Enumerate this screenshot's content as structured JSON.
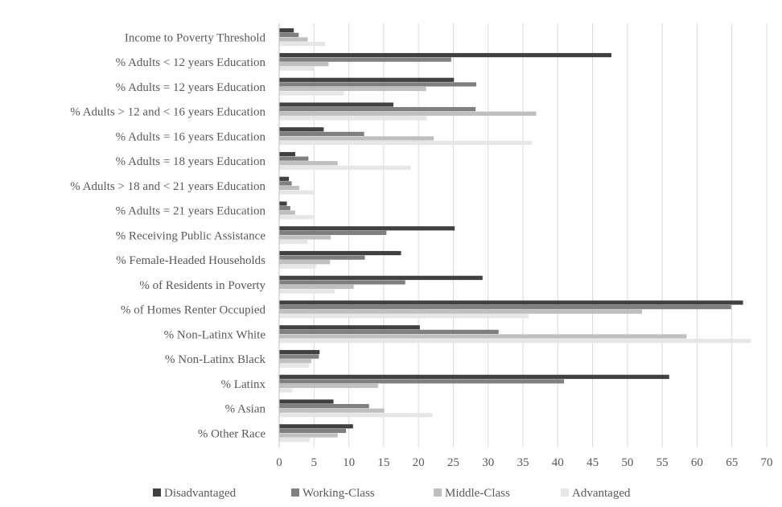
{
  "chart_data": {
    "type": "bar",
    "orientation": "horizontal",
    "title": "",
    "xlabel": "",
    "ylabel": "",
    "xlim": [
      0,
      70
    ],
    "x_ticks": [
      "0",
      "5",
      "10",
      "15",
      "20",
      "25",
      "30",
      "35",
      "40",
      "45",
      "50",
      "55",
      "60",
      "65",
      "70"
    ],
    "grid": "vertical",
    "legend_position": "bottom",
    "categories": [
      "Income to Poverty Threshold",
      "% Adults < 12 years Education",
      "% Adults = 12 years Education",
      "% Adults > 12 and < 16 years Education",
      "% Adults = 16 years Education",
      "% Adults = 18 years Education",
      "% Adults > 18 and < 21 years Education",
      "% Adults = 21 years Education",
      "% Receiving Public Assistance",
      "% Female-Headed Households",
      "% of Residents in Poverty",
      "% of Homes Renter Occupied",
      "% Non-Latinx White",
      "% Non-Latinx Black",
      "% Latinx",
      "% Asian",
      "% Other Race"
    ],
    "series": [
      {
        "name": "Disadvantaged",
        "color": "#404040",
        "values": [
          2.1,
          47.7,
          25.1,
          16.4,
          6.4,
          2.3,
          1.4,
          1.1,
          25.2,
          17.5,
          29.2,
          66.6,
          20.2,
          5.8,
          56.0,
          7.8,
          10.6
        ]
      },
      {
        "name": "Working-Class",
        "color": "#7f7f7f",
        "values": [
          2.8,
          24.7,
          28.3,
          28.2,
          12.2,
          4.2,
          1.8,
          1.6,
          15.4,
          12.3,
          18.1,
          64.9,
          31.5,
          5.7,
          40.9,
          12.9,
          9.6
        ]
      },
      {
        "name": "Middle-Class",
        "color": "#bfbfbf",
        "values": [
          4.1,
          7.1,
          21.1,
          36.9,
          22.2,
          8.4,
          2.9,
          2.3,
          7.4,
          7.3,
          10.7,
          52.1,
          58.5,
          4.6,
          14.2,
          15.1,
          8.4
        ]
      },
      {
        "name": "Advantaged",
        "color": "#e6e6e6",
        "values": [
          6.6,
          5.0,
          9.3,
          21.2,
          36.3,
          18.9,
          4.9,
          5.1,
          4.1,
          5.3,
          8.0,
          35.8,
          67.7,
          4.3,
          1.9,
          22.0,
          4.4
        ]
      }
    ]
  }
}
